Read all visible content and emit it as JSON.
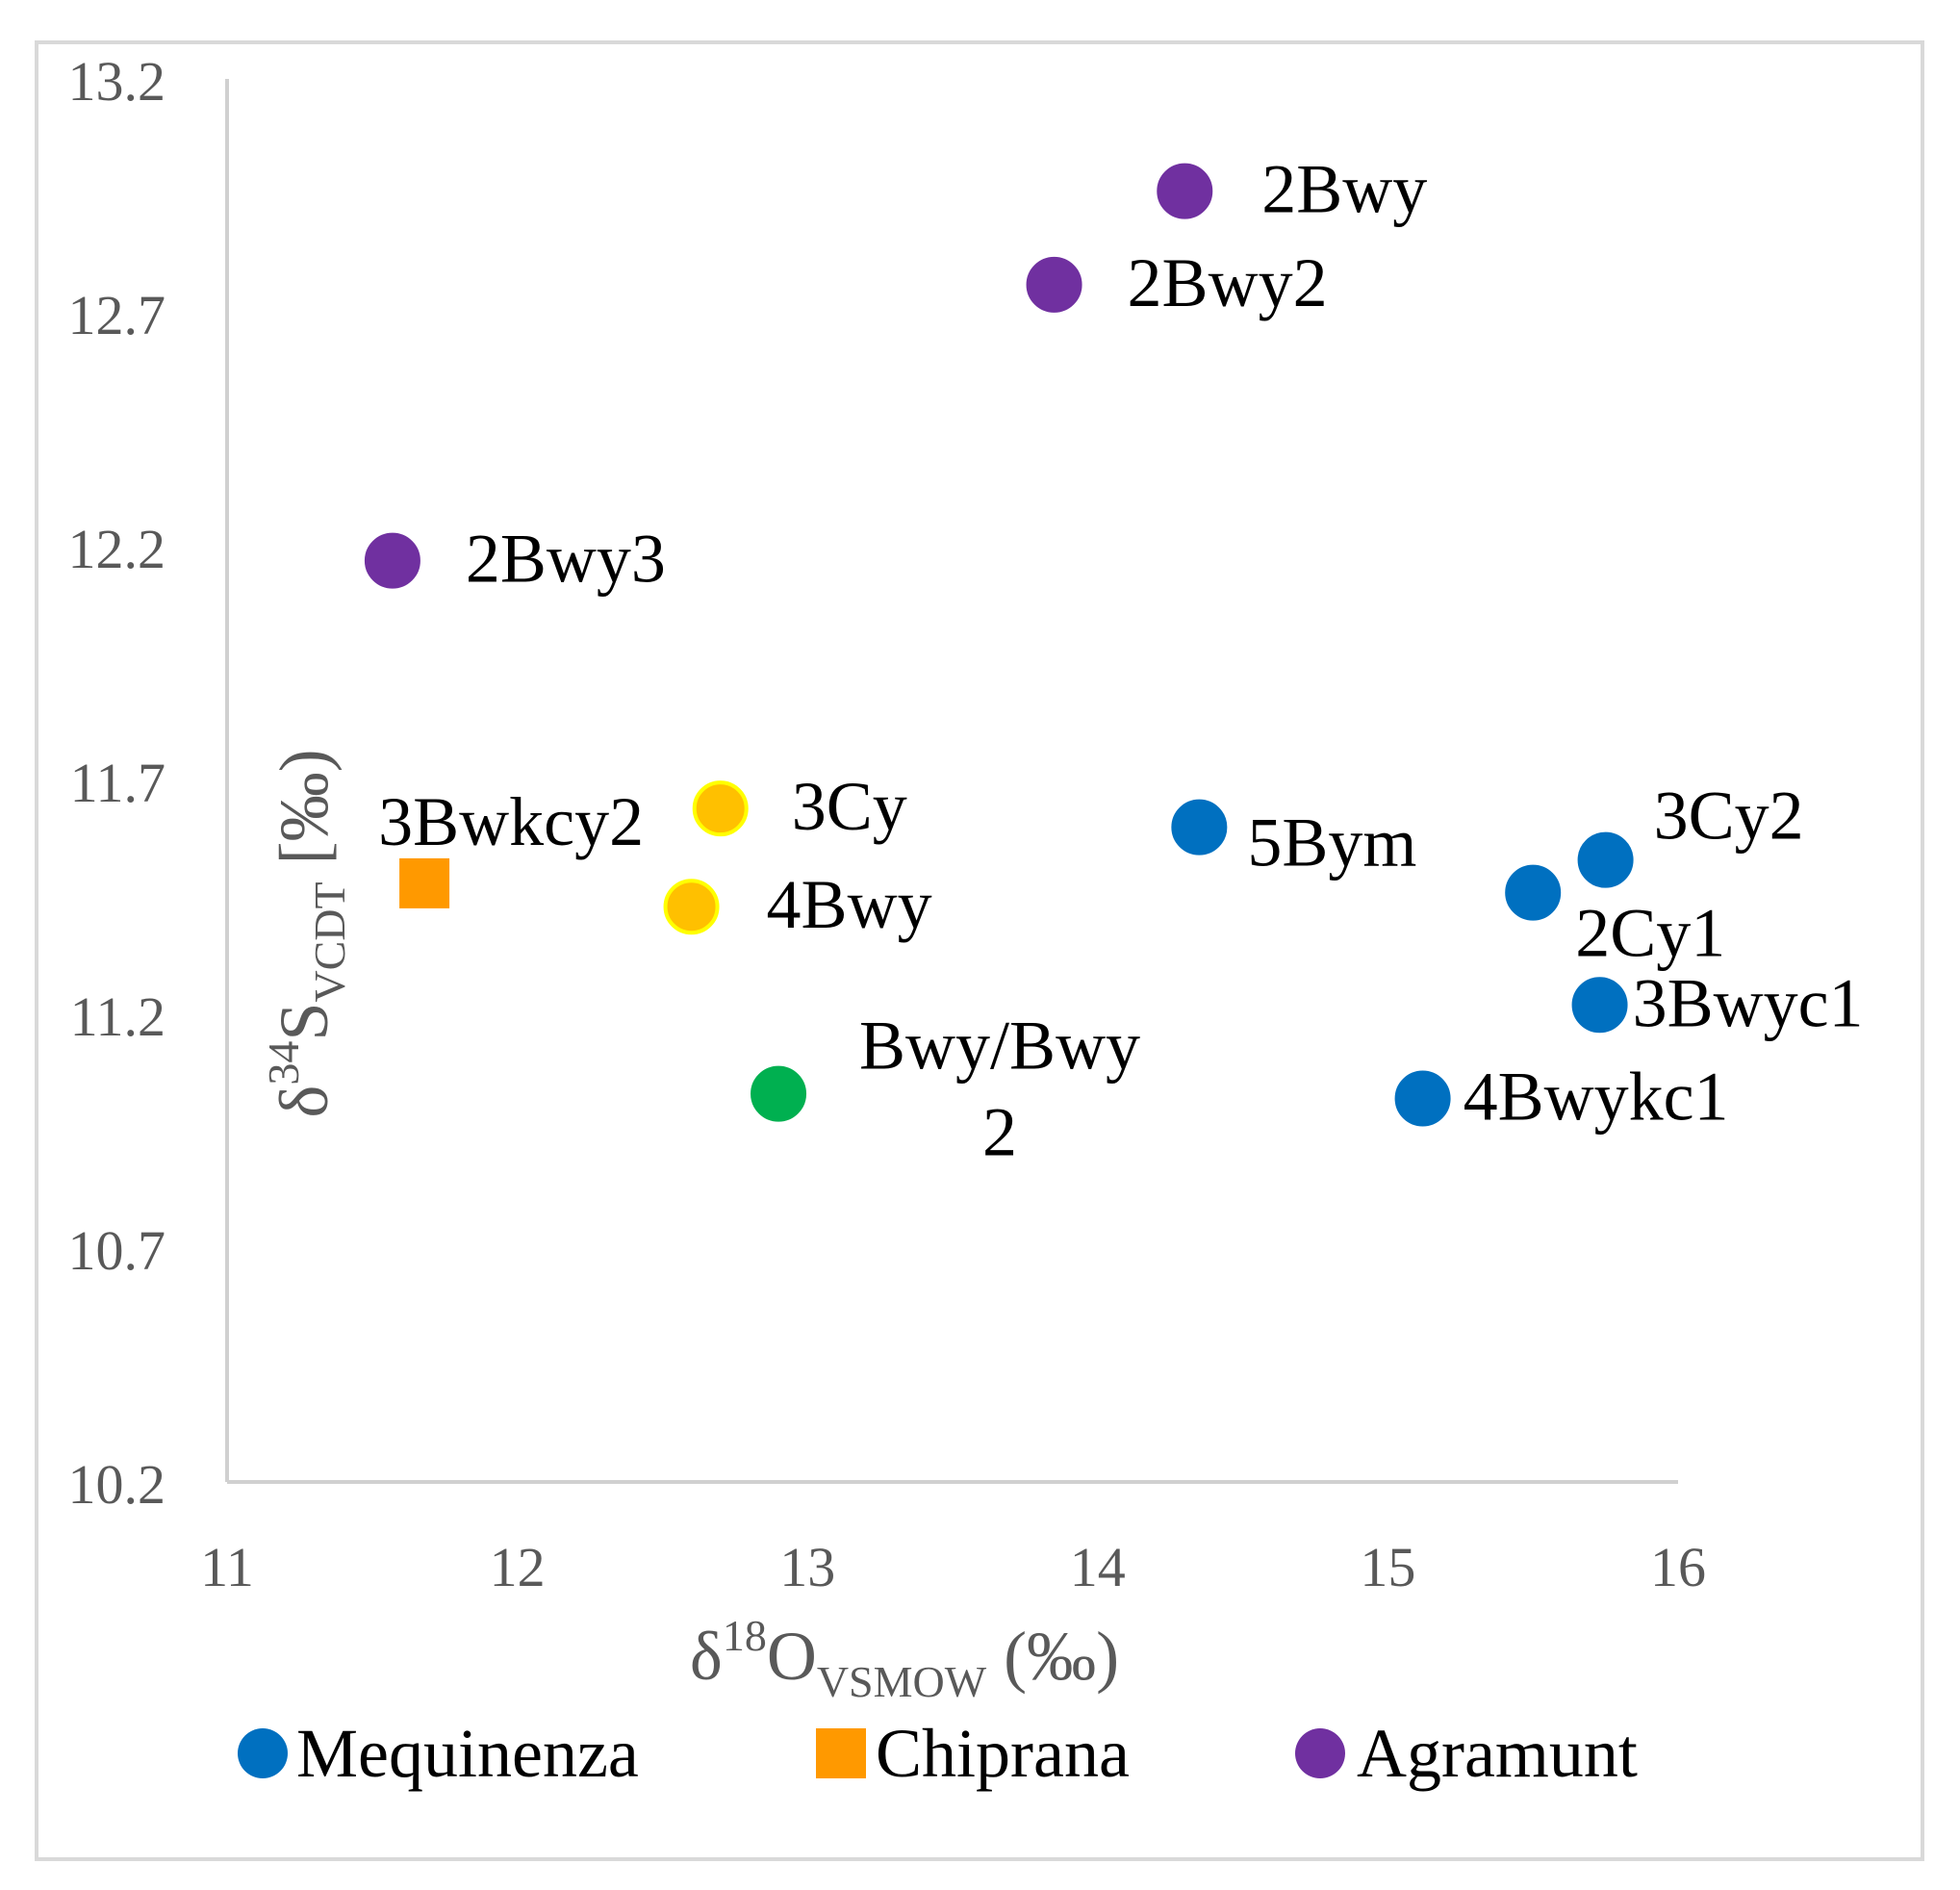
{
  "chart_data": {
    "type": "scatter",
    "title": "",
    "xlabel": {
      "base": "δ",
      "sup": "18",
      "main": "O",
      "sub": "VSMOW",
      "tail": " (‰)"
    },
    "ylabel": {
      "base": "δ",
      "sup": "34",
      "main": "S",
      "sub": "VCDT",
      "tail": " [‰)"
    },
    "xlim": [
      11,
      16
    ],
    "ylim": [
      10.2,
      13.2
    ],
    "xticks": [
      11,
      12,
      13,
      14,
      15,
      16
    ],
    "yticks": [
      10.2,
      10.7,
      11.2,
      11.7,
      12.2,
      12.7,
      13.2
    ],
    "xtick_labels": [
      "11",
      "12",
      "13",
      "14",
      "15",
      "16"
    ],
    "ytick_labels": [
      "10.2",
      "10.7",
      "11.2",
      "11.7",
      "12.2",
      "12.7",
      "13.2"
    ],
    "grid": false,
    "legend_position": "bottom",
    "colors": {
      "Mequinenza": "#0070c0",
      "Chiprana": "#ff9900",
      "Agramunt": "#7030a0",
      "yellow": "#ffc000",
      "yellow_edge": "#ffff00",
      "green": "#00b050"
    },
    "legend": [
      {
        "name": "Mequinenza",
        "marker": "circle",
        "color": "#0070c0"
      },
      {
        "name": "Chiprana",
        "marker": "square",
        "color": "#ff9900"
      },
      {
        "name": "Agramunt",
        "marker": "circle",
        "color": "#7030a0"
      }
    ],
    "points": [
      {
        "label": "2Bwy",
        "x": 14.3,
        "y": 12.96,
        "series": "Agramunt",
        "marker": "circle",
        "color": "#7030a0",
        "edge": "#7030a0"
      },
      {
        "label": "2Bwy2",
        "x": 13.85,
        "y": 12.76,
        "series": "Agramunt",
        "marker": "circle",
        "color": "#7030a0",
        "edge": "#7030a0"
      },
      {
        "label": "2Bwy3",
        "x": 11.57,
        "y": 12.17,
        "series": "Agramunt",
        "marker": "circle",
        "color": "#7030a0",
        "edge": "#7030a0"
      },
      {
        "label": "3Bwkcy2",
        "x": 11.68,
        "y": 11.48,
        "series": "Chiprana",
        "marker": "square",
        "color": "#ff9900",
        "edge": "#ff9900"
      },
      {
        "label": "3Cy",
        "x": 12.7,
        "y": 11.64,
        "series": "",
        "marker": "circle",
        "color": "#ffc000",
        "edge": "#ffff00"
      },
      {
        "label": "4Bwy",
        "x": 12.6,
        "y": 11.43,
        "series": "",
        "marker": "circle",
        "color": "#ffc000",
        "edge": "#ffff00"
      },
      {
        "label": "Bwy/Bwy",
        "label2": "2",
        "x": 12.9,
        "y": 11.03,
        "series": "",
        "marker": "circle",
        "color": "#00b050",
        "edge": "#00b050"
      },
      {
        "label": "5Bym",
        "x": 14.35,
        "y": 11.6,
        "series": "Mequinenza",
        "marker": "circle",
        "color": "#0070c0",
        "edge": "#0070c0"
      },
      {
        "label": "3Cy2",
        "x": 15.75,
        "y": 11.53,
        "series": "Mequinenza",
        "marker": "circle",
        "color": "#0070c0",
        "edge": "#0070c0"
      },
      {
        "label": "2Cy1",
        "x": 15.5,
        "y": 11.46,
        "series": "Mequinenza",
        "marker": "circle",
        "color": "#0070c0",
        "edge": "#0070c0"
      },
      {
        "label": "3Bwyc1",
        "x": 15.73,
        "y": 11.22,
        "series": "Mequinenza",
        "marker": "circle",
        "color": "#0070c0",
        "edge": "#0070c0"
      },
      {
        "label": "4Bwykc1",
        "x": 15.12,
        "y": 11.02,
        "series": "Mequinenza",
        "marker": "circle",
        "color": "#0070c0",
        "edge": "#0070c0"
      }
    ]
  }
}
